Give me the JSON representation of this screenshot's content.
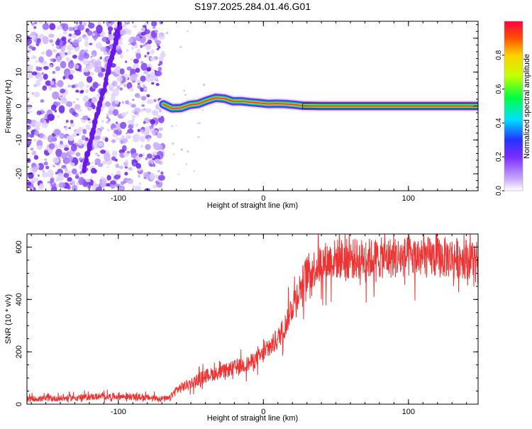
{
  "title": "S197.2025.284.01.46.G01",
  "chart_data": [
    {
      "type": "heatmap",
      "panel": "spectrogram",
      "xlabel": "Height of straight line (km)",
      "ylabel": "Frequency (Hz)",
      "xlim": [
        -163,
        148
      ],
      "ylim": [
        -25,
        25
      ],
      "xticks": [
        -100,
        0,
        100
      ],
      "xtick_labels": [
        "-100",
        "0",
        "100"
      ],
      "yticks": [
        -20,
        -10,
        0,
        10,
        20
      ],
      "ytick_labels": [
        "-20",
        "-10",
        "0",
        "10",
        "20"
      ],
      "colorbar": {
        "label": "Normalized spectral amplitude",
        "range": [
          0,
          1
        ],
        "ticks": [
          0.0,
          0.2,
          0.4,
          0.6,
          0.8
        ],
        "tick_labels": [
          "0.0",
          "0.2",
          "0.4",
          "0.6",
          "0.8"
        ]
      },
      "noise_region_x": [
        -163,
        -69
      ],
      "diagonal_streak": {
        "x": [
          -124,
          -99
        ],
        "y": [
          -19,
          24
        ]
      },
      "signal_ridge": {
        "x": [
          -69,
          -63,
          -57,
          -51,
          -45,
          -39,
          -33,
          -27,
          -21,
          -15,
          -9,
          -3,
          3,
          9,
          15,
          21,
          27,
          40,
          60,
          80,
          100,
          120,
          148
        ],
        "y": [
          0.5,
          -0.7,
          -0.6,
          0.3,
          0.6,
          1.6,
          2.4,
          2.2,
          1.4,
          1.4,
          1.1,
          0.9,
          0.6,
          0.7,
          0.6,
          0.4,
          0.1,
          0.0,
          0.0,
          0.0,
          0.0,
          0.0,
          0.0
        ]
      }
    },
    {
      "type": "line",
      "panel": "snr",
      "xlabel": "Height of straight line (km)",
      "ylabel": "SNR (10 * v/v)",
      "xlim": [
        -163,
        148
      ],
      "ylim": [
        0,
        650
      ],
      "xticks": [
        -100,
        0,
        100
      ],
      "xtick_labels": [
        "-100",
        "0",
        "100"
      ],
      "yticks": [
        0,
        200,
        400,
        600
      ],
      "ytick_labels": [
        "0",
        "200",
        "400",
        "600"
      ],
      "series": [
        {
          "name": "SNR",
          "color": "#ee3333",
          "x": [
            -163,
            -140,
            -120,
            -100,
            -80,
            -65,
            -60,
            -50,
            -40,
            -30,
            -20,
            -10,
            0,
            10,
            15,
            20,
            25,
            30,
            40,
            50,
            70,
            90,
            110,
            130,
            145,
            148
          ],
          "y": [
            20,
            22,
            28,
            30,
            25,
            20,
            55,
            80,
            110,
            120,
            140,
            155,
            190,
            250,
            300,
            380,
            440,
            500,
            540,
            555,
            555,
            560,
            560,
            560,
            555,
            500
          ]
        }
      ]
    }
  ]
}
